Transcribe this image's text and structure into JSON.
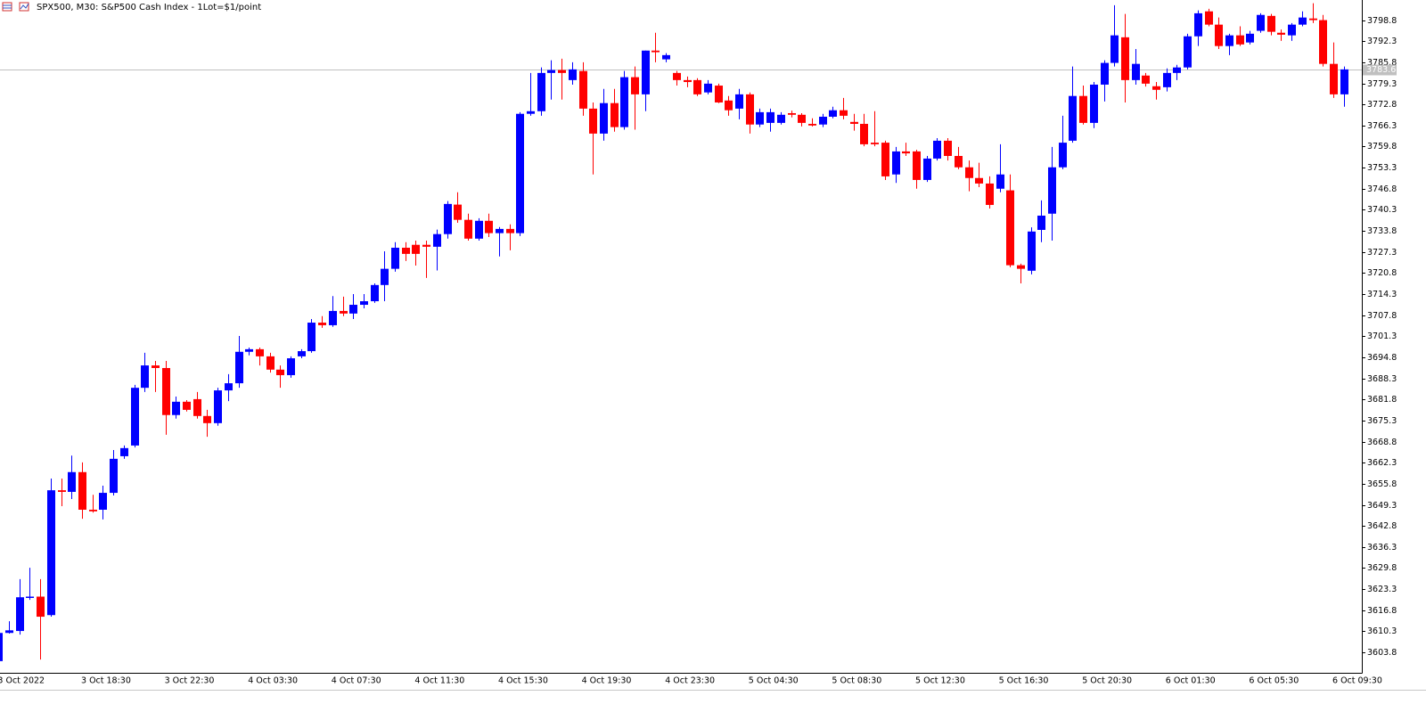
{
  "chart_data": {
    "type": "candlestick",
    "title": "SPX500, M30:  S&P500 Cash Index - 1Lot=$1/point",
    "categories": [
      "3 Oct 2022",
      null,
      null,
      null,
      null,
      null,
      null,
      null,
      "3 Oct 18:30",
      null,
      null,
      null,
      null,
      null,
      null,
      null,
      "3 Oct 22:30",
      null,
      null,
      null,
      null,
      null,
      null,
      null,
      "4 Oct 03:30",
      null,
      null,
      null,
      null,
      null,
      null,
      null,
      "4 Oct 07:30",
      null,
      null,
      null,
      null,
      null,
      null,
      null,
      "4 Oct 11:30",
      null,
      null,
      null,
      null,
      null,
      null,
      null,
      "4 Oct 15:30",
      null,
      null,
      null,
      null,
      null,
      null,
      null,
      "4 Oct 19:30",
      null,
      null,
      null,
      null,
      null,
      null,
      null,
      "4 Oct 23:30",
      null,
      null,
      null,
      null,
      null,
      null,
      null,
      "5 Oct 04:30",
      null,
      null,
      null,
      null,
      null,
      null,
      null,
      "5 Oct 08:30",
      null,
      null,
      null,
      null,
      null,
      null,
      null,
      "5 Oct 12:30",
      null,
      null,
      null,
      null,
      null,
      null,
      null,
      "5 Oct 16:30",
      null,
      null,
      null,
      null,
      null,
      null,
      null,
      "5 Oct 20:30",
      null,
      null,
      null,
      null,
      null,
      null,
      null,
      "6 Oct 01:30",
      null,
      null,
      null,
      null,
      null,
      null,
      null,
      "6 Oct 05:30",
      null,
      null,
      null,
      null,
      null,
      null,
      null,
      "6 Oct 09:30",
      null
    ],
    "open": [
      3601.1,
      3609.8,
      3610.4,
      3620.6,
      3621.0,
      3615.3,
      3653.8,
      3653.3,
      3659.4,
      3647.8,
      3647.8,
      3653.0,
      3664.3,
      3667.6,
      3685.4,
      3692.3,
      3691.5,
      3677.0,
      3681.1,
      3681.9,
      3676.7,
      3674.5,
      3684.6,
      3686.8,
      3696.5,
      3697.3,
      3695.1,
      3691.0,
      3689.3,
      3695.1,
      3696.7,
      3705.5,
      3704.7,
      3709.1,
      3708.3,
      3711.0,
      3712.1,
      3717.1,
      3722.1,
      3728.6,
      3729.5,
      3729.5,
      3728.9,
      3732.8,
      3741.9,
      3737.2,
      3731.4,
      3736.9,
      3733.1,
      3734.4,
      3733.1,
      3769.9,
      3770.7,
      3782.5,
      3783.4,
      3780.3,
      3783.1,
      3771.5,
      3763.8,
      3773.2,
      3765.8,
      3781.2,
      3775.9,
      3789.4,
      3786.7,
      3782.5,
      3780.3,
      3780.3,
      3776.5,
      3778.6,
      3774.0,
      3771.5,
      3775.9,
      3766.6,
      3767.1,
      3767.1,
      3770.1,
      3769.6,
      3766.8,
      3766.6,
      3769.0,
      3771.0,
      3767.4,
      3766.8,
      3761.0,
      3761.0,
      3751.2,
      3758.3,
      3758.3,
      3749.5,
      3756.1,
      3761.6,
      3756.9,
      3753.4,
      3750.1,
      3748.4,
      3746.8,
      3746.3,
      3723.2,
      3721.5,
      3734.1,
      3739.1,
      3753.4,
      3761.6,
      3775.4,
      3767.1,
      3778.9,
      3785.6,
      3793.5,
      3780.3,
      3781.7,
      3778.4,
      3778.1,
      3782.5,
      3784.2,
      3793.8,
      3801.5,
      3797.4,
      3790.8,
      3794.1,
      3791.9,
      3795.5,
      3800.1,
      3794.9,
      3794.1,
      3797.4,
      3799.3,
      3798.8,
      3785.3,
      3775.9
    ],
    "high": [
      3611.2,
      3613.4,
      3626.4,
      3629.9,
      3626.4,
      3657.4,
      3657.4,
      3664.5,
      3662.4,
      3652.4,
      3655.2,
      3666.2,
      3667.6,
      3686.3,
      3696.2,
      3693.7,
      3693.7,
      3682.7,
      3681.6,
      3684.1,
      3678.6,
      3685.4,
      3689.6,
      3701.4,
      3697.8,
      3697.8,
      3696.2,
      3692.3,
      3695.1,
      3697.3,
      3706.6,
      3707.5,
      3713.7,
      3713.5,
      3714.3,
      3714.3,
      3717.6,
      3727.5,
      3730.3,
      3730.3,
      3730.8,
      3730.8,
      3734.2,
      3743.0,
      3745.7,
      3739.1,
      3737.7,
      3739.1,
      3735.0,
      3735.8,
      3770.4,
      3782.5,
      3784.2,
      3786.4,
      3786.9,
      3785.8,
      3785.8,
      3773.4,
      3777.6,
      3777.6,
      3783.1,
      3784.5,
      3789.4,
      3794.9,
      3788.6,
      3783.1,
      3781.4,
      3780.9,
      3780.3,
      3779.2,
      3775.4,
      3777.6,
      3776.5,
      3771.5,
      3771.5,
      3770.4,
      3770.9,
      3770.1,
      3768.5,
      3769.9,
      3772.1,
      3774.8,
      3769.9,
      3769.9,
      3770.7,
      3761.6,
      3759.7,
      3761.0,
      3758.8,
      3756.9,
      3762.4,
      3762.4,
      3759.7,
      3755.5,
      3754.8,
      3750.6,
      3760.5,
      3751.2,
      3723.7,
      3734.9,
      3743.2,
      3759.7,
      3769.3,
      3784.5,
      3778.6,
      3779.7,
      3786.4,
      3803.4,
      3800.7,
      3789.9,
      3782.5,
      3779.7,
      3783.9,
      3785.0,
      3794.6,
      3801.8,
      3802.3,
      3799.6,
      3794.6,
      3796.9,
      3795.5,
      3800.9,
      3800.7,
      3795.9,
      3797.9,
      3801.5,
      3804.0,
      3800.4,
      3791.9,
      3784.5
    ],
    "low": [
      3600.2,
      3609.6,
      3609.3,
      3620.0,
      3601.6,
      3614.8,
      3648.9,
      3651.1,
      3645.0,
      3646.9,
      3644.8,
      3652.2,
      3663.5,
      3667.0,
      3684.1,
      3684.1,
      3670.9,
      3675.9,
      3678.1,
      3675.9,
      3670.3,
      3673.7,
      3681.3,
      3685.4,
      3695.4,
      3692.3,
      3690.1,
      3685.4,
      3688.5,
      3694.5,
      3696.2,
      3703.9,
      3704.2,
      3707.5,
      3706.6,
      3709.9,
      3711.6,
      3712.1,
      3721.2,
      3724.5,
      3723.1,
      3719.3,
      3721.6,
      3731.4,
      3736.3,
      3730.8,
      3730.8,
      3731.9,
      3725.9,
      3727.8,
      3732.2,
      3769.3,
      3769.3,
      3774.3,
      3774.3,
      3778.9,
      3769.3,
      3751.2,
      3761.6,
      3764.4,
      3765.0,
      3765.0,
      3770.7,
      3785.8,
      3785.8,
      3778.6,
      3778.1,
      3775.4,
      3775.9,
      3773.2,
      3769.3,
      3768.2,
      3763.8,
      3765.8,
      3764.4,
      3766.6,
      3768.8,
      3766.0,
      3766.0,
      3765.8,
      3768.5,
      3768.2,
      3764.7,
      3759.9,
      3759.9,
      3749.5,
      3748.6,
      3756.9,
      3746.8,
      3748.9,
      3755.5,
      3755.5,
      3752.8,
      3746.0,
      3747.3,
      3740.7,
      3745.7,
      3722.6,
      3717.6,
      3720.4,
      3730.3,
      3730.8,
      3752.8,
      3761.0,
      3766.6,
      3765.5,
      3773.7,
      3784.5,
      3773.4,
      3778.9,
      3778.3,
      3774.3,
      3776.8,
      3780.3,
      3783.6,
      3790.8,
      3796.9,
      3789.9,
      3788.0,
      3790.8,
      3791.3,
      3794.9,
      3794.1,
      3792.4,
      3792.4,
      3796.9,
      3797.9,
      3784.5,
      3774.8,
      3772.1
    ],
    "close": [
      3609.8,
      3610.6,
      3620.8,
      3621.0,
      3614.8,
      3653.8,
      3653.3,
      3659.4,
      3647.8,
      3647.3,
      3653.0,
      3663.5,
      3666.8,
      3685.4,
      3692.3,
      3691.5,
      3677.0,
      3681.1,
      3678.6,
      3676.7,
      3674.5,
      3684.6,
      3686.8,
      3696.5,
      3697.3,
      3695.1,
      3691.0,
      3689.3,
      3694.5,
      3696.7,
      3705.5,
      3704.7,
      3709.1,
      3708.3,
      3711.0,
      3712.1,
      3717.1,
      3722.1,
      3728.6,
      3726.7,
      3726.7,
      3728.9,
      3732.8,
      3742.1,
      3737.2,
      3731.4,
      3736.9,
      3733.1,
      3734.4,
      3733.1,
      3769.9,
      3770.7,
      3782.5,
      3783.4,
      3782.5,
      3783.6,
      3771.5,
      3763.8,
      3773.2,
      3765.8,
      3781.2,
      3775.9,
      3789.4,
      3788.9,
      3788.0,
      3780.3,
      3779.7,
      3775.9,
      3779.2,
      3773.4,
      3771.0,
      3775.9,
      3766.6,
      3770.4,
      3770.4,
      3769.6,
      3769.6,
      3767.1,
      3766.3,
      3769.0,
      3771.0,
      3769.3,
      3766.8,
      3760.5,
      3760.5,
      3750.6,
      3758.3,
      3757.7,
      3749.5,
      3756.1,
      3761.6,
      3756.9,
      3753.4,
      3750.1,
      3748.4,
      3741.8,
      3751.2,
      3723.2,
      3722.1,
      3733.6,
      3738.5,
      3753.4,
      3761.0,
      3775.4,
      3767.1,
      3778.9,
      3785.6,
      3794.1,
      3780.3,
      3785.3,
      3779.2,
      3777.3,
      3782.5,
      3784.2,
      3793.8,
      3800.9,
      3797.4,
      3790.8,
      3794.1,
      3791.3,
      3794.6,
      3800.4,
      3795.2,
      3794.3,
      3797.4,
      3799.6,
      3798.8,
      3785.3,
      3775.9,
      3783.6
    ],
    "up_color": "#0000ff",
    "down_color": "#ff0000",
    "price_line": 3783.6,
    "ylim": [
      3597.5,
      3805.0
    ],
    "yticks": [
      3603.8,
      3610.3,
      3616.8,
      3623.3,
      3629.8,
      3636.3,
      3642.8,
      3649.3,
      3655.8,
      3662.3,
      3668.8,
      3675.3,
      3681.8,
      3688.3,
      3694.8,
      3701.3,
      3707.8,
      3714.3,
      3720.8,
      3727.3,
      3733.8,
      3740.3,
      3746.8,
      3753.3,
      3759.8,
      3766.3,
      3772.8,
      3779.3,
      3785.8,
      3792.3,
      3798.8
    ],
    "grid": false
  }
}
